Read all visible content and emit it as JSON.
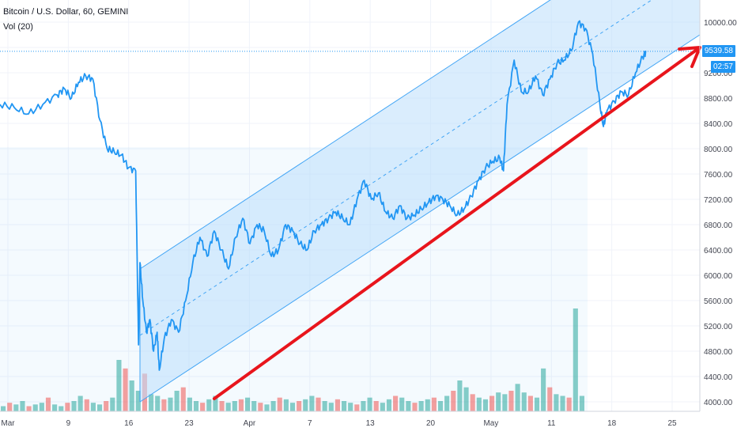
{
  "header": {
    "symbol_line": "Bitcoin / U.S. Dollar, 60, GEMINI",
    "volume_line": "Vol (20)"
  },
  "price_axis": {
    "last_price_label": "9539.58",
    "countdown_label": "02:57"
  },
  "colors": {
    "price_line": "#2196f3",
    "channel_fill": "#bbdefb",
    "channel_border": "#42a5f5",
    "trend_arrow": "#e8151c",
    "volume_up": "#26a69a",
    "volume_down": "#ef5350",
    "grid": "#f0f3fa",
    "axis_text": "#434651"
  },
  "chart_data": {
    "type": "line",
    "title": "",
    "xlabel": "",
    "ylabel": "",
    "ylim": [
      3850,
      10350
    ],
    "x_ticks": [
      "Mar",
      "9",
      "16",
      "23",
      "Apr",
      "7",
      "13",
      "20",
      "May",
      "11",
      "18",
      "25"
    ],
    "y_ticks": [
      4000,
      4400,
      4800,
      5200,
      5600,
      6000,
      6400,
      6800,
      7200,
      7600,
      8000,
      8400,
      8800,
      9200,
      9600,
      10000
    ],
    "grid": true,
    "last_price": 9539.58,
    "series": [
      {
        "points": [
          [
            0,
            8700
          ],
          [
            2,
            8650
          ],
          [
            4,
            8550
          ],
          [
            6,
            8700
          ],
          [
            8,
            8850
          ],
          [
            9,
            8950
          ],
          [
            10,
            8800
          ],
          [
            11,
            9050
          ],
          [
            12,
            9150
          ],
          [
            13,
            9100
          ],
          [
            14,
            8450
          ],
          [
            15,
            8000
          ],
          [
            16,
            7950
          ],
          [
            17,
            7900
          ],
          [
            18,
            7700
          ],
          [
            19,
            7650
          ],
          [
            19.4,
            4900
          ],
          [
            19.6,
            6200
          ],
          [
            20,
            5600
          ],
          [
            20.5,
            5100
          ],
          [
            21,
            5300
          ],
          [
            21.5,
            4800
          ],
          [
            22,
            5100
          ],
          [
            22.3,
            4500
          ],
          [
            23,
            5000
          ],
          [
            24,
            5300
          ],
          [
            25,
            5100
          ],
          [
            26,
            5600
          ],
          [
            27,
            6200
          ],
          [
            28,
            6600
          ],
          [
            29,
            6300
          ],
          [
            30,
            6700
          ],
          [
            31,
            6400
          ],
          [
            32,
            6100
          ],
          [
            33,
            6600
          ],
          [
            34,
            6900
          ],
          [
            35,
            6500
          ],
          [
            36,
            6800
          ],
          [
            37,
            6700
          ],
          [
            38,
            6300
          ],
          [
            39,
            6400
          ],
          [
            40,
            6800
          ],
          [
            41,
            6700
          ],
          [
            42,
            6500
          ],
          [
            43,
            6400
          ],
          [
            44,
            6700
          ],
          [
            45,
            6800
          ],
          [
            46,
            6900
          ],
          [
            47,
            7000
          ],
          [
            48,
            6900
          ],
          [
            49,
            6800
          ],
          [
            50,
            7200
          ],
          [
            51,
            7500
          ],
          [
            52,
            7200
          ],
          [
            53,
            7300
          ],
          [
            54,
            7000
          ],
          [
            55,
            6900
          ],
          [
            56,
            7100
          ],
          [
            57,
            6900
          ],
          [
            58,
            6950
          ],
          [
            59,
            7050
          ],
          [
            60,
            7150
          ],
          [
            61,
            7250
          ],
          [
            62,
            7200
          ],
          [
            63,
            7100
          ],
          [
            64,
            6950
          ],
          [
            65,
            7050
          ],
          [
            66,
            7250
          ],
          [
            67,
            7500
          ],
          [
            68,
            7700
          ],
          [
            69,
            7800
          ],
          [
            70,
            7850
          ],
          [
            70.5,
            7650
          ],
          [
            71,
            8700
          ],
          [
            72,
            9400
          ],
          [
            73,
            8900
          ],
          [
            74,
            8900
          ],
          [
            75,
            9150
          ],
          [
            76,
            8850
          ],
          [
            77,
            9100
          ],
          [
            78,
            9350
          ],
          [
            79,
            9400
          ],
          [
            80,
            9550
          ],
          [
            81,
            10000
          ],
          [
            82,
            9900
          ],
          [
            83,
            9500
          ],
          [
            84,
            8700
          ],
          [
            84.5,
            8350
          ],
          [
            85,
            8600
          ],
          [
            86,
            8750
          ],
          [
            87,
            8900
          ],
          [
            88,
            8850
          ],
          [
            89,
            9200
          ],
          [
            90,
            9450
          ],
          [
            90.5,
            9540
          ]
        ]
      }
    ],
    "channel": {
      "lower": [
        [
          19.6,
          4000
        ],
        [
          98,
          9800
        ]
      ],
      "upper": [
        [
          19.6,
          6100
        ],
        [
          98,
          11900
        ]
      ],
      "midline": true
    },
    "trend_arrow": {
      "from": [
        30,
        4050
      ],
      "to": [
        98,
        9600
      ]
    },
    "volume": [
      3,
      5,
      4,
      6,
      3,
      4,
      5,
      8,
      4,
      3,
      5,
      6,
      9,
      7,
      5,
      4,
      6,
      8,
      30,
      25,
      18,
      12,
      22,
      10,
      9,
      7,
      8,
      12,
      14,
      8,
      6,
      5,
      7,
      9,
      6,
      5,
      6,
      7,
      8,
      6,
      5,
      4,
      6,
      8,
      7,
      5,
      6,
      7,
      9,
      8,
      6,
      5,
      7,
      6,
      5,
      4,
      6,
      8,
      6,
      5,
      7,
      9,
      8,
      6,
      5,
      6,
      7,
      8,
      6,
      9,
      12,
      18,
      14,
      10,
      8,
      7,
      9,
      11,
      10,
      12,
      16,
      11,
      9,
      8,
      25,
      14,
      10,
      9,
      8,
      60,
      9
    ]
  }
}
